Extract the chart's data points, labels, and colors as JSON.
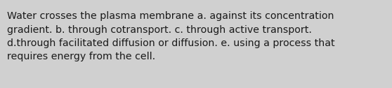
{
  "background_color": "#d0d0d0",
  "text": "Water crosses the plasma membrane a. against its concentration\ngradient. b. through cotransport. c. through active transport.\nd.through facilitated diffusion or diffusion. e. using a process that\nrequires energy from the cell.",
  "text_color": "#1a1a1a",
  "font_size": 10.2,
  "font_family": "DejaVu Sans",
  "fig_width": 5.58,
  "fig_height": 1.26,
  "dpi": 100
}
